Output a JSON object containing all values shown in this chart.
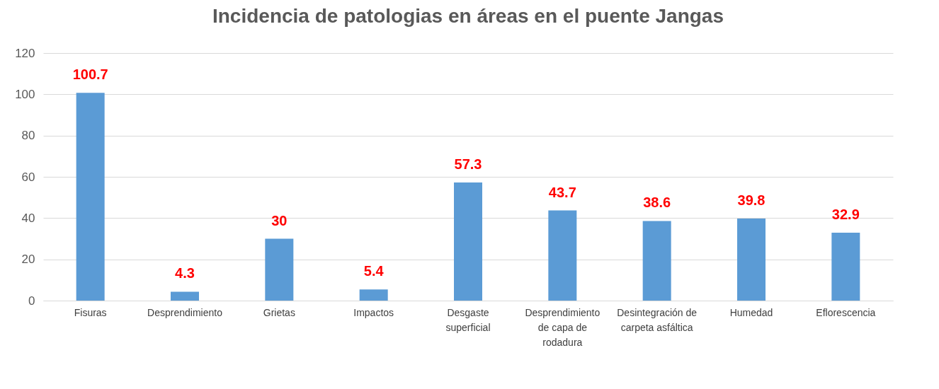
{
  "chart_data": {
    "type": "bar",
    "title": "Incidencia  de patologias en áreas en el puente Jangas",
    "categories": [
      "Fisuras",
      "Desprendimiento",
      "Grietas",
      "Impactos",
      "Desgaste superficial",
      "Desprendimiento de capa de rodadura",
      "Desintegración de carpeta asfáltica",
      "Humedad",
      "Eflorescencia"
    ],
    "values": [
      100.7,
      4.3,
      30,
      5.4,
      57.3,
      43.7,
      38.6,
      39.8,
      32.9
    ],
    "color": "#5b9bd5",
    "ylim": [
      0,
      120
    ],
    "yticks": [
      0,
      20,
      40,
      60,
      80,
      100,
      120
    ],
    "grid": "y",
    "data_labels": true
  }
}
